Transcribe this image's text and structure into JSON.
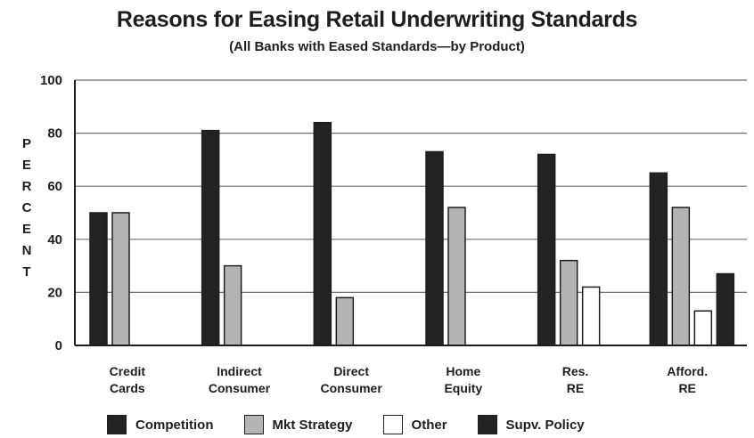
{
  "chart_data": {
    "type": "bar",
    "title": "Reasons for Easing Retail Underwriting Standards",
    "subtitle": "(All Banks with Eased Standards—by Product)",
    "ylabel": "PERCENT",
    "xlabel": "",
    "ylim": [
      0,
      100
    ],
    "yticks": [
      0,
      20,
      40,
      60,
      80,
      100
    ],
    "grid": true,
    "legend_position": "bottom",
    "categories": [
      [
        "Credit",
        "Cards"
      ],
      [
        "Indirect",
        "Consumer"
      ],
      [
        "Direct",
        "Consumer"
      ],
      [
        "Home",
        "Equity"
      ],
      [
        "Res.",
        "RE"
      ],
      [
        "Afford.",
        "RE"
      ]
    ],
    "series": [
      {
        "name": "Competition",
        "color": "#232323",
        "values": [
          50,
          81,
          84,
          73,
          72,
          65
        ]
      },
      {
        "name": "Mkt Strategy",
        "color": "#b4b4b4",
        "values": [
          50,
          30,
          18,
          52,
          32,
          52
        ]
      },
      {
        "name": "Other",
        "color": "#ffffff",
        "values": [
          0,
          0,
          0,
          0,
          22,
          13
        ]
      },
      {
        "name": "Supv. Policy",
        "color": "#232323",
        "values": [
          0,
          0,
          0,
          0,
          0,
          27
        ]
      }
    ]
  }
}
